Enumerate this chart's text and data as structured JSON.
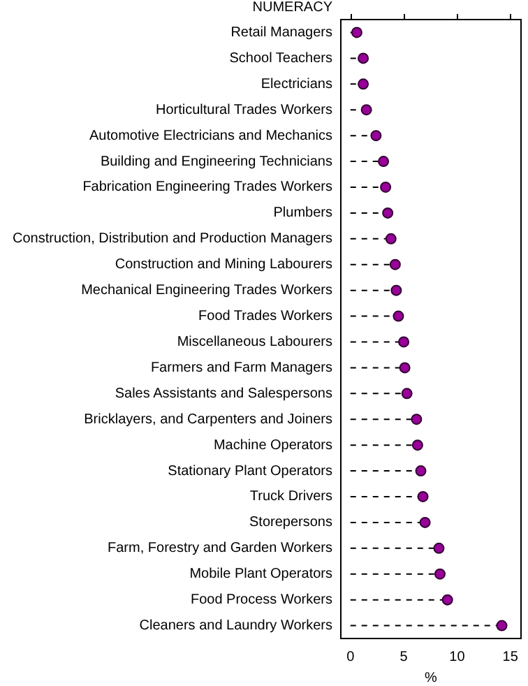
{
  "chart_data": {
    "type": "lollipop",
    "orientation": "horizontal",
    "title": "NUMERACY",
    "xlabel": "%",
    "categories": [
      "Retail Managers",
      "School Teachers",
      "Electricians",
      "Horticultural Trades Workers",
      "Automotive Electricians and Mechanics",
      "Building and Engineering Technicians",
      "Fabrication Engineering Trades Workers",
      "Plumbers",
      "Construction, Distribution and Production Managers",
      "Construction and Mining Labourers",
      "Mechanical Engineering Trades Workers",
      "Food Trades Workers",
      "Miscellaneous Labourers",
      "Farmers and Farm Managers",
      "Sales Assistants and Salespersons",
      "Bricklayers, and Carpenters and Joiners",
      "Machine Operators",
      "Stationary Plant Operators",
      "Truck Drivers",
      "Storepersons",
      "Farm, Forestry and Garden Workers",
      "Mobile Plant Operators",
      "Food Process Workers",
      "Cleaners and Laundry Workers"
    ],
    "values": [
      0.6,
      1.2,
      1.2,
      1.5,
      2.4,
      3.1,
      3.3,
      3.5,
      3.8,
      4.2,
      4.3,
      4.5,
      5.0,
      5.1,
      5.3,
      6.2,
      6.3,
      6.6,
      6.8,
      7.0,
      8.3,
      8.4,
      9.1,
      14.2
    ],
    "color": "#990099",
    "xlim": [
      -0.9,
      16
    ],
    "xticks": [
      0,
      5,
      10,
      15
    ],
    "grid": false,
    "legend": false,
    "marker": "circle",
    "line_style": "dashed"
  }
}
